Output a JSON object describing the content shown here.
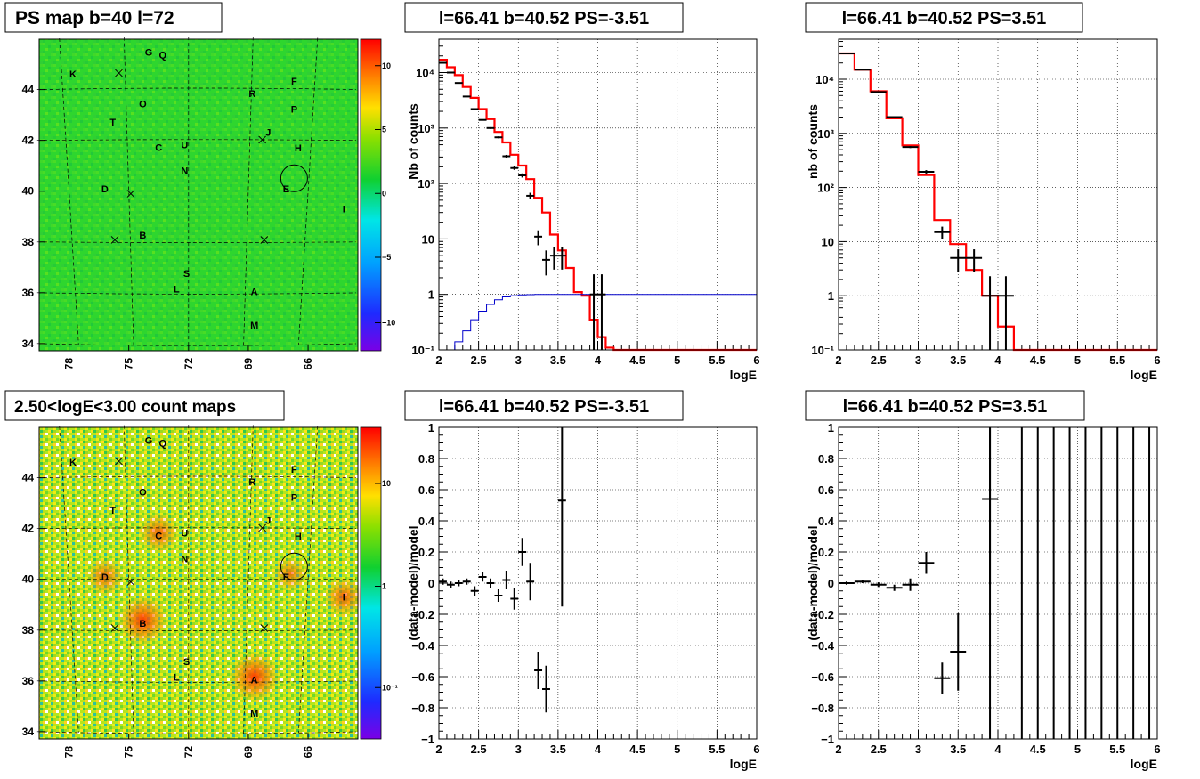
{
  "colors": {
    "data": "#000000",
    "model": "#ff0000",
    "background_model": "#0000cc",
    "frame": "#000000"
  },
  "maps": [
    {
      "title": "PS map b=40 l=72",
      "map_type": "significance",
      "lat_ticks": [
        "44",
        "42",
        "40",
        "38",
        "36",
        "34"
      ],
      "lon_ticks": [
        "78",
        "75",
        "72",
        "69",
        "66"
      ],
      "colorbar_ticks": [
        "10",
        "5",
        "0",
        "−5",
        "−10"
      ],
      "sources": [
        {
          "label": "K",
          "lon": 77.8,
          "lat": 44.6
        },
        {
          "label": "G",
          "lon": 74.0,
          "lat": 45.4
        },
        {
          "label": "Q",
          "lon": 73.3,
          "lat": 45.3
        },
        {
          "label": "O",
          "lon": 74.3,
          "lat": 43.4
        },
        {
          "label": "R",
          "lon": 68.8,
          "lat": 43.8
        },
        {
          "label": "F",
          "lon": 66.7,
          "lat": 44.3
        },
        {
          "label": "P",
          "lon": 66.7,
          "lat": 43.2
        },
        {
          "label": "T",
          "lon": 75.8,
          "lat": 42.7
        },
        {
          "label": "J",
          "lon": 68.0,
          "lat": 42.3
        },
        {
          "label": "C",
          "lon": 73.5,
          "lat": 41.7
        },
        {
          "label": "U",
          "lon": 72.2,
          "lat": 41.8
        },
        {
          "label": "H",
          "lon": 66.5,
          "lat": 41.7
        },
        {
          "label": "N",
          "lon": 72.2,
          "lat": 40.8
        },
        {
          "label": "D",
          "lon": 76.2,
          "lat": 40.1
        },
        {
          "label": "E",
          "lon": 67.1,
          "lat": 40.1
        },
        {
          "label": "I",
          "lon": 64.2,
          "lat": 39.3
        },
        {
          "label": "B",
          "lon": 74.3,
          "lat": 38.3
        },
        {
          "label": "S",
          "lon": 72.1,
          "lat": 36.8
        },
        {
          "label": "L",
          "lon": 72.6,
          "lat": 36.2
        },
        {
          "label": "A",
          "lon": 68.7,
          "lat": 36.1
        },
        {
          "label": "M",
          "lon": 68.7,
          "lat": 34.8
        }
      ],
      "crosses": [
        {
          "lon": 75.5,
          "lat": 44.6
        },
        {
          "lon": 68.3,
          "lat": 42.0
        },
        {
          "lon": 74.9,
          "lat": 39.9
        },
        {
          "lon": 75.7,
          "lat": 38.1
        },
        {
          "lon": 68.2,
          "lat": 38.1
        }
      ],
      "circle": {
        "lon": 66.7,
        "lat": 40.5
      }
    },
    {
      "title": "2.50<logE<3.00 count maps",
      "map_type": "counts",
      "lat_ticks": [
        "44",
        "42",
        "40",
        "38",
        "36",
        "34"
      ],
      "lon_ticks": [
        "78",
        "75",
        "72",
        "69",
        "66"
      ],
      "colorbar_ticks": [
        "10",
        "1",
        "10⁻¹"
      ],
      "sources": [
        {
          "label": "K",
          "lon": 77.8,
          "lat": 44.6
        },
        {
          "label": "G",
          "lon": 74.0,
          "lat": 45.4
        },
        {
          "label": "Q",
          "lon": 73.3,
          "lat": 45.3
        },
        {
          "label": "O",
          "lon": 74.3,
          "lat": 43.4
        },
        {
          "label": "R",
          "lon": 68.8,
          "lat": 43.8
        },
        {
          "label": "F",
          "lon": 66.7,
          "lat": 44.3
        },
        {
          "label": "P",
          "lon": 66.7,
          "lat": 43.2
        },
        {
          "label": "T",
          "lon": 75.8,
          "lat": 42.7
        },
        {
          "label": "J",
          "lon": 68.0,
          "lat": 42.3
        },
        {
          "label": "C",
          "lon": 73.5,
          "lat": 41.7
        },
        {
          "label": "U",
          "lon": 72.2,
          "lat": 41.8
        },
        {
          "label": "H",
          "lon": 66.5,
          "lat": 41.7
        },
        {
          "label": "N",
          "lon": 72.2,
          "lat": 40.8
        },
        {
          "label": "D",
          "lon": 76.2,
          "lat": 40.1
        },
        {
          "label": "E",
          "lon": 67.1,
          "lat": 40.1
        },
        {
          "label": "I",
          "lon": 64.2,
          "lat": 39.3
        },
        {
          "label": "B",
          "lon": 74.3,
          "lat": 38.3
        },
        {
          "label": "S",
          "lon": 72.1,
          "lat": 36.8
        },
        {
          "label": "L",
          "lon": 72.6,
          "lat": 36.2
        },
        {
          "label": "A",
          "lon": 68.7,
          "lat": 36.1
        },
        {
          "label": "M",
          "lon": 68.7,
          "lat": 34.8
        }
      ],
      "crosses": [
        {
          "lon": 75.5,
          "lat": 44.6
        },
        {
          "lon": 68.3,
          "lat": 42.0
        },
        {
          "lon": 74.9,
          "lat": 39.9
        },
        {
          "lon": 75.7,
          "lat": 38.1
        },
        {
          "lon": 68.2,
          "lat": 38.1
        }
      ],
      "circle": {
        "lon": 66.7,
        "lat": 40.5
      },
      "hotspots": [
        {
          "label": "B",
          "lon": 74.3,
          "lat": 38.4,
          "strength": 1.0
        },
        {
          "label": "A",
          "lon": 68.7,
          "lat": 36.2,
          "strength": 1.0
        },
        {
          "label": "C",
          "lon": 73.5,
          "lat": 41.8,
          "strength": 0.6
        },
        {
          "label": "D",
          "lon": 76.2,
          "lat": 40.1,
          "strength": 0.5
        },
        {
          "label": "I",
          "lon": 64.2,
          "lat": 39.3,
          "strength": 0.6
        },
        {
          "label": "E",
          "lon": 66.9,
          "lat": 40.2,
          "strength": 0.4
        }
      ]
    }
  ],
  "chart_data": [
    {
      "type": "line",
      "title": "l=66.41 b=40.52 PS=-3.51",
      "xlabel": "logE",
      "ylabel": "Nb of counts",
      "ylog": true,
      "xlim": [
        2,
        6
      ],
      "ylim": [
        0.1,
        40000
      ],
      "xticks": [
        "2",
        "2.5",
        "3",
        "3.5",
        "4",
        "4.5",
        "5",
        "5.5",
        "6"
      ],
      "yticks": [
        {
          "v": 0.1,
          "t": "10⁻¹"
        },
        {
          "v": 1,
          "t": "1"
        },
        {
          "v": 10,
          "t": "10"
        },
        {
          "v": 100,
          "t": "10²"
        },
        {
          "v": 1000,
          "t": "10³"
        },
        {
          "v": 10000,
          "t": "10⁴"
        }
      ],
      "grid": true,
      "data_points": {
        "name": "data",
        "x": [
          2.05,
          2.15,
          2.25,
          2.35,
          2.45,
          2.55,
          2.65,
          2.75,
          2.85,
          2.95,
          3.05,
          3.15,
          3.25,
          3.35,
          3.45,
          3.55,
          3.65,
          3.95,
          4.05
        ],
        "y": [
          15000,
          10000,
          6500,
          3700,
          2200,
          1400,
          1000,
          680,
          310,
          190,
          140,
          60,
          11,
          4.2,
          5,
          5,
          0,
          1,
          1
        ],
        "xerr": 0.05,
        "yerr_lo": [
          120,
          100,
          80,
          60,
          47,
          37,
          32,
          26,
          18,
          14,
          12,
          8,
          3.3,
          2,
          2.2,
          2.2,
          0,
          0.9,
          0.9
        ],
        "yerr_hi": [
          120,
          100,
          80,
          60,
          47,
          37,
          32,
          26,
          18,
          14,
          12,
          8,
          3.3,
          2,
          2.2,
          2.2,
          0,
          1.3,
          1.3
        ]
      },
      "series": [
        {
          "name": "model",
          "x": [
            2,
            2.1,
            2.2,
            2.3,
            2.4,
            2.5,
            2.6,
            2.7,
            2.8,
            2.9,
            3.0,
            3.1,
            3.2,
            3.3,
            3.4,
            3.5,
            3.6,
            3.7,
            3.8,
            3.9,
            4.0,
            4.1,
            4.2,
            6.0
          ],
          "y": [
            17000,
            12500,
            9000,
            5500,
            3500,
            2200,
            1450,
            850,
            550,
            330,
            210,
            120,
            55,
            30,
            12,
            6.2,
            3,
            1.1,
            0.95,
            0.35,
            0.17,
            0.11,
            0.1,
            0.1
          ]
        },
        {
          "name": "background",
          "x": [
            2,
            2.1,
            2.2,
            2.3,
            2.4,
            2.5,
            2.6,
            2.7,
            2.8,
            2.9,
            3.0,
            3.1,
            3.2,
            3.3,
            3.4,
            6.0
          ],
          "y": [
            0.05,
            0.09,
            0.14,
            0.22,
            0.35,
            0.5,
            0.66,
            0.8,
            0.9,
            0.95,
            0.98,
            0.99,
            1.0,
            1.0,
            1.0,
            1.0
          ]
        }
      ]
    },
    {
      "type": "line",
      "title": "l=66.41 b=40.52 PS=3.51",
      "xlabel": "logE",
      "ylabel": "nb of counts",
      "ylog": true,
      "xlim": [
        2,
        6
      ],
      "ylim": [
        0.1,
        55000
      ],
      "xticks": [
        "2",
        "2.5",
        "3",
        "3.5",
        "4",
        "4.5",
        "5",
        "5.5",
        "6"
      ],
      "yticks": [
        {
          "v": 0.1,
          "t": "10⁻¹"
        },
        {
          "v": 1,
          "t": "1"
        },
        {
          "v": 10,
          "t": "10"
        },
        {
          "v": 100,
          "t": "10²"
        },
        {
          "v": 1000,
          "t": "10³"
        },
        {
          "v": 10000,
          "t": "10⁴"
        }
      ],
      "grid": true,
      "data_points": {
        "name": "data",
        "x": [
          2.1,
          2.3,
          2.5,
          2.7,
          2.9,
          3.1,
          3.3,
          3.5,
          3.7,
          3.9,
          4.1
        ],
        "y": [
          30000,
          15000,
          5800,
          2000,
          560,
          195,
          15,
          5,
          5,
          1,
          1
        ],
        "xerr": 0.1,
        "yerr_lo": [
          170,
          120,
          76,
          45,
          24,
          14,
          3.9,
          2.2,
          2.2,
          0.9,
          0.9
        ],
        "yerr_hi": [
          170,
          120,
          76,
          45,
          24,
          14,
          3.9,
          2.2,
          2.2,
          1.3,
          1.3
        ]
      },
      "series": [
        {
          "name": "model",
          "x": [
            2.0,
            2.2,
            2.4,
            2.6,
            2.8,
            3.0,
            3.2,
            3.4,
            3.6,
            3.8,
            4.0,
            4.2,
            6.0
          ],
          "y": [
            30000,
            15000,
            6000,
            1900,
            600,
            170,
            25,
            9,
            3,
            1,
            0.27,
            0.1,
            0.1
          ]
        }
      ]
    },
    {
      "type": "scatter",
      "title": "l=66.41 b=40.52 PS=-3.51",
      "xlabel": "logE",
      "ylabel": "(data-model)/model",
      "ylog": false,
      "xlim": [
        2,
        6
      ],
      "ylim": [
        -1,
        1
      ],
      "xticks": [
        "2",
        "2.5",
        "3",
        "3.5",
        "4",
        "4.5",
        "5",
        "5.5",
        "6"
      ],
      "yticks": [
        {
          "v": -1,
          "t": "−1"
        },
        {
          "v": -0.8,
          "t": "−0.8"
        },
        {
          "v": -0.6,
          "t": "−0.6"
        },
        {
          "v": -0.4,
          "t": "−0.4"
        },
        {
          "v": -0.2,
          "t": "−0.2"
        },
        {
          "v": 0,
          "t": "0"
        },
        {
          "v": 0.2,
          "t": "0.2"
        },
        {
          "v": 0.4,
          "t": "0.4"
        },
        {
          "v": 0.6,
          "t": "0.6"
        },
        {
          "v": 0.8,
          "t": "0.8"
        },
        {
          "v": 1,
          "t": "1"
        }
      ],
      "grid": true,
      "data_points": {
        "name": "data",
        "x": [
          2.05,
          2.15,
          2.25,
          2.35,
          2.45,
          2.55,
          2.65,
          2.75,
          2.85,
          2.95,
          3.05,
          3.15,
          3.25,
          3.35,
          3.55
        ],
        "y": [
          0.01,
          -0.01,
          0.0,
          0.01,
          -0.05,
          0.04,
          0.0,
          -0.08,
          0.02,
          -0.1,
          0.2,
          0.01,
          -0.56,
          -0.68,
          0.53
        ],
        "xerr": 0.05,
        "yerr": [
          0.02,
          0.02,
          0.02,
          0.02,
          0.03,
          0.03,
          0.03,
          0.04,
          0.06,
          0.07,
          0.09,
          0.12,
          0.12,
          0.15,
          0.68
        ]
      },
      "series": []
    },
    {
      "type": "scatter",
      "title": "l=66.41 b=40.52 PS=3.51",
      "xlabel": "logE",
      "ylabel": "(data-model)/model",
      "ylog": false,
      "xlim": [
        2,
        6
      ],
      "ylim": [
        -1,
        1
      ],
      "xticks": [
        "2",
        "2.5",
        "3",
        "3.5",
        "4",
        "4.5",
        "5",
        "5.5",
        "6"
      ],
      "yticks": [
        {
          "v": -1,
          "t": "−1"
        },
        {
          "v": -0.8,
          "t": "−0.8"
        },
        {
          "v": -0.6,
          "t": "−0.6"
        },
        {
          "v": -0.4,
          "t": "−0.4"
        },
        {
          "v": -0.2,
          "t": "−0.2"
        },
        {
          "v": 0,
          "t": "0"
        },
        {
          "v": 0.2,
          "t": "0.2"
        },
        {
          "v": 0.4,
          "t": "0.4"
        },
        {
          "v": 0.6,
          "t": "0.6"
        },
        {
          "v": 0.8,
          "t": "0.8"
        },
        {
          "v": 1,
          "t": "1"
        }
      ],
      "grid": true,
      "data_points": {
        "name": "data",
        "x": [
          2.1,
          2.3,
          2.5,
          2.7,
          2.9,
          3.1,
          3.3,
          3.5,
          3.9
        ],
        "y": [
          0.0,
          0.01,
          -0.01,
          -0.03,
          -0.01,
          0.13,
          -0.61,
          -0.44,
          0.54
        ],
        "xerr": 0.1,
        "yerr": [
          0.01,
          0.01,
          0.015,
          0.02,
          0.04,
          0.07,
          0.1,
          0.25,
          0.55
        ]
      },
      "full_range_bars": [
        3.9,
        4.3,
        4.5,
        4.7,
        4.9,
        5.1,
        5.3,
        5.5,
        5.7,
        5.9
      ],
      "series": []
    }
  ]
}
